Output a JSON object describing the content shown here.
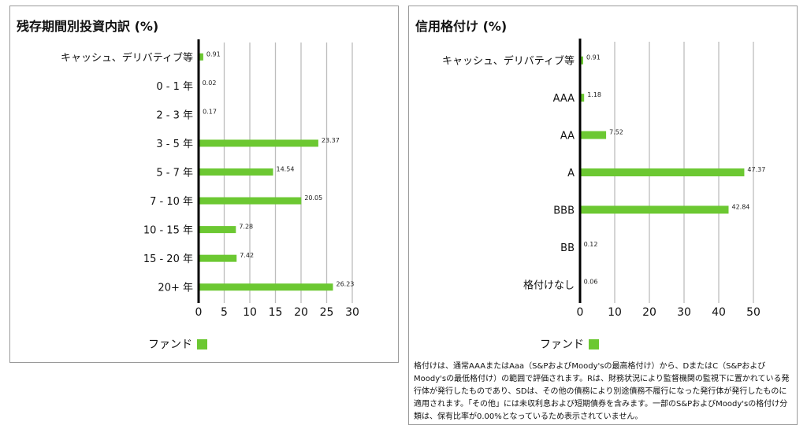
{
  "colors": {
    "bar": "#6cc832",
    "axis": "#000000",
    "grid": "#bdbdbd"
  },
  "panels": {
    "maturity": {
      "title": "残存期間別投資内訳 (%)",
      "legend_label": "ファンド"
    },
    "rating": {
      "title": "信用格付け (%)",
      "legend_label": "ファンド",
      "footnote": "格付けは、通常AAAまたはAaa（S&PおよびMoody'sの最高格付け）から、DまたはC（S&PおよびMoody'sの最低格付け）の範囲で評価されます。Rは、財務状況により監督機関の監視下に置かれている発行体が発行したものであり、SDは、その他の債務により別途債務不履行になった発行体が発行したものに適用されます。「その他」には未収利息および短期債券を含みます。一部のS&PおよびMoody'sの格付け分類は、保有比率が0.00%となっているため表示されていません。"
    }
  },
  "chart_data": [
    {
      "type": "bar",
      "orientation": "horizontal",
      "title": "残存期間別投資内訳 (%)",
      "categories": [
        "キャッシュ、デリバティブ等",
        "0 - 1 年",
        "2 - 3 年",
        "3 - 5 年",
        "5 - 7 年",
        "7 - 10 年",
        "10 - 15 年",
        "15 - 20 年",
        "20+ 年"
      ],
      "series": [
        {
          "name": "ファンド",
          "values": [
            0.91,
            0.02,
            0.17,
            23.37,
            14.54,
            20.05,
            7.28,
            7.42,
            26.23
          ]
        }
      ],
      "xlim": [
        0,
        30
      ],
      "xticks": [
        0,
        5,
        10,
        15,
        20,
        25,
        30
      ],
      "grid": true,
      "legend": "bottom"
    },
    {
      "type": "bar",
      "orientation": "horizontal",
      "title": "信用格付け (%)",
      "categories": [
        "キャッシュ、デリバティブ等",
        "AAA",
        "AA",
        "A",
        "BBB",
        "BB",
        "格付けなし"
      ],
      "series": [
        {
          "name": "ファンド",
          "values": [
            0.91,
            1.18,
            7.52,
            47.37,
            42.84,
            0.12,
            0.06
          ]
        }
      ],
      "xlim": [
        0,
        50
      ],
      "xticks": [
        0,
        10,
        20,
        30,
        40,
        50
      ],
      "grid": true,
      "legend": "bottom"
    }
  ]
}
